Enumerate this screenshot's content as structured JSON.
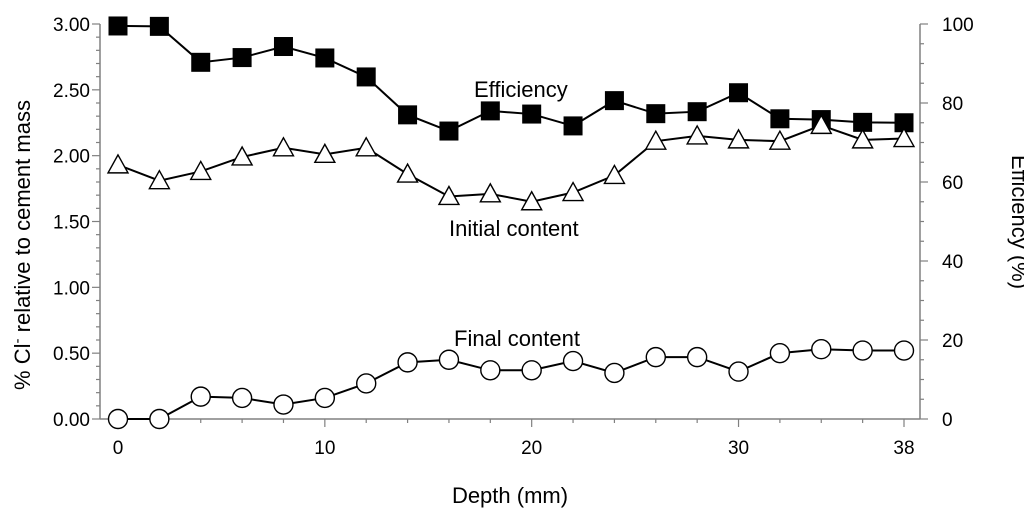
{
  "chart_data": {
    "type": "line",
    "xlabel": "Depth (mm)",
    "ylabel": "% Cl- relative to cement mass",
    "ylabel_main": "% Cl",
    "ylabel_sup": "-",
    "ylabel_rest": " relative to cement mass",
    "y2label": "Efficiency (%)",
    "x_ticks": [
      "0",
      "10",
      "20",
      "30",
      "38"
    ],
    "x_tick_values": [
      0,
      10,
      20,
      30,
      38
    ],
    "xlim": [
      0,
      38
    ],
    "y_ticks": [
      "0.00",
      "0.50",
      "1.00",
      "1.50",
      "2.00",
      "2.50",
      "3.00"
    ],
    "ylim": [
      0,
      3
    ],
    "y2_ticks": [
      "0",
      "20",
      "40",
      "60",
      "80",
      "100"
    ],
    "y2lim": [
      0,
      100
    ],
    "grid": false,
    "legend": "none",
    "series": [
      {
        "name": "Efficiency",
        "axis": "right",
        "marker": "square-filled",
        "x": [
          0,
          2,
          4,
          6,
          8,
          10,
          12,
          14,
          16,
          18,
          20,
          22,
          24,
          26,
          28,
          30,
          32,
          34,
          36,
          38
        ],
        "values": [
          99.5,
          99.4,
          90.3,
          91.5,
          94.3,
          91.4,
          86.6,
          77.0,
          72.9,
          78.0,
          77.2,
          74.2,
          80.6,
          77.3,
          77.8,
          82.6,
          76.0,
          75.8,
          75.1,
          75.0
        ]
      },
      {
        "name": "Initial content",
        "axis": "left",
        "marker": "triangle-open",
        "x": [
          0,
          2,
          4,
          6,
          8,
          10,
          12,
          14,
          16,
          18,
          20,
          22,
          24,
          26,
          28,
          30,
          32,
          34,
          36,
          38
        ],
        "values": [
          1.93,
          1.81,
          1.88,
          1.99,
          2.06,
          2.01,
          2.06,
          1.86,
          1.69,
          1.71,
          1.65,
          1.72,
          1.85,
          2.11,
          2.15,
          2.12,
          2.11,
          2.23,
          2.12,
          2.13
        ]
      },
      {
        "name": "Final content",
        "axis": "left",
        "marker": "circle-open",
        "x": [
          0,
          2,
          4,
          6,
          8,
          10,
          12,
          14,
          16,
          18,
          20,
          22,
          24,
          26,
          28,
          30,
          32,
          34,
          36,
          38
        ],
        "values": [
          0.0,
          0.0,
          0.17,
          0.16,
          0.11,
          0.16,
          0.27,
          0.43,
          0.45,
          0.37,
          0.37,
          0.44,
          0.35,
          0.47,
          0.47,
          0.36,
          0.5,
          0.53,
          0.52,
          0.52
        ]
      }
    ],
    "annotations": [
      {
        "text": "Efficiency",
        "series": "Efficiency"
      },
      {
        "text": "Initial content",
        "series": "Initial content"
      },
      {
        "text": "Final content",
        "series": "Final content"
      }
    ]
  }
}
